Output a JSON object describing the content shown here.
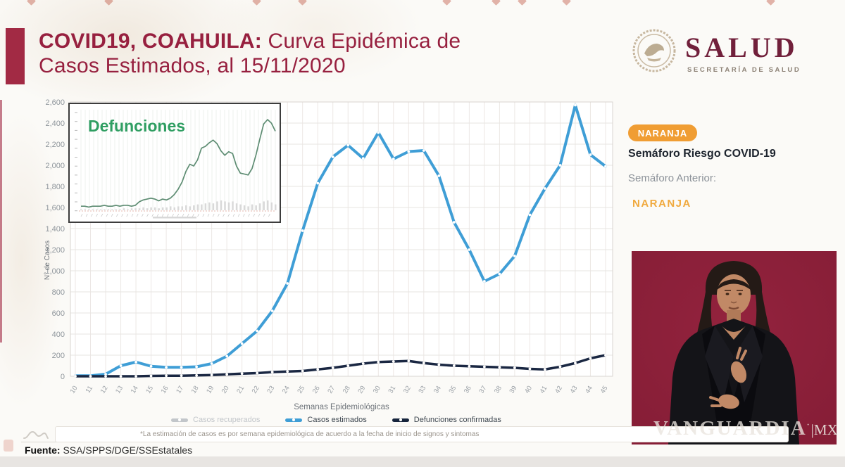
{
  "header": {
    "title_strong": "COVID19, COAHUILA:",
    "title_rest": " Curva Epidémica de",
    "title_line2": "Casos Estimados, al 15/11/2020",
    "logo": {
      "name": "SALUD",
      "subtitle": "SECRETARÍA DE SALUD"
    }
  },
  "status_panel": {
    "badge_label": "NARANJA",
    "badge_color": "#F09D33",
    "risk_label": "Semáforo Riesgo COVID-19",
    "previous_label": "Semáforo Anterior:",
    "previous_value": "NARANJA",
    "previous_value_color": "#F0A93E"
  },
  "chart_data": {
    "type": "line",
    "xlabel": "Semanas Epidemiológicas",
    "ylabel": "N° de Casos",
    "ylim": [
      0,
      2600
    ],
    "ytick_step": 200,
    "grid": true,
    "legend_position": "bottom",
    "categories": [
      "10",
      "11",
      "12",
      "13",
      "14",
      "15",
      "16",
      "17",
      "18",
      "19",
      "20",
      "21",
      "22",
      "23",
      "24",
      "25",
      "26",
      "27",
      "28",
      "29",
      "30",
      "31",
      "32",
      "33",
      "34",
      "35",
      "36",
      "37",
      "38",
      "39",
      "40",
      "41",
      "42",
      "43",
      "44",
      "45"
    ],
    "series": [
      {
        "name": "Casos recuperados",
        "color": "#C2C6CA",
        "visible": false,
        "width": 3.5,
        "values": []
      },
      {
        "name": "Casos estimados",
        "color": "#3F9ED6",
        "visible": true,
        "width": 4,
        "values": [
          5,
          5,
          20,
          100,
          135,
          95,
          85,
          85,
          90,
          120,
          190,
          310,
          430,
          620,
          880,
          1380,
          1830,
          2080,
          2190,
          2065,
          2310,
          2060,
          2130,
          2140,
          1900,
          1460,
          1200,
          900,
          970,
          1140,
          1530,
          1780,
          2000,
          2570,
          2100,
          1990
        ]
      },
      {
        "name": "Defunciones confirmadas",
        "color": "#1A2742",
        "visible": true,
        "width": 3.5,
        "values": [
          0,
          0,
          0,
          0,
          0,
          3,
          5,
          5,
          8,
          12,
          18,
          25,
          30,
          40,
          45,
          50,
          65,
          80,
          100,
          120,
          135,
          140,
          145,
          125,
          110,
          100,
          95,
          90,
          85,
          80,
          70,
          65,
          90,
          125,
          170,
          200
        ]
      }
    ],
    "inset": {
      "type": "line",
      "title": "Defunciones",
      "title_color": "#2F9E62",
      "line_color": "#5D8C72",
      "bar_color": "#D9D9D9",
      "values": [
        3,
        3,
        2,
        3,
        3,
        3,
        4,
        3,
        3,
        4,
        3,
        4,
        4,
        3,
        4,
        8,
        10,
        11,
        12,
        11,
        9,
        11,
        10,
        12,
        16,
        22,
        30,
        42,
        50,
        48,
        55,
        68,
        70,
        74,
        77,
        73,
        65,
        60,
        64,
        62,
        48,
        40,
        39,
        38,
        45,
        60,
        78,
        95,
        100,
        96,
        87
      ],
      "bar_values": [
        1,
        1,
        1,
        1,
        1,
        1,
        1,
        1,
        1,
        1,
        1,
        2,
        1,
        2,
        2,
        2,
        3,
        2,
        3,
        3,
        2,
        3,
        3,
        4,
        3,
        4,
        4,
        5,
        4,
        5,
        6,
        6,
        7,
        8,
        7,
        9,
        10,
        9,
        8,
        9,
        7,
        6,
        5,
        4,
        6,
        5,
        7,
        9,
        10,
        8,
        6
      ]
    }
  },
  "legend": [
    {
      "label": "Casos recuperados",
      "marker_color": "#C2C6CA",
      "text_color": "#C2C6CA",
      "enabled": false
    },
    {
      "label": "Casos estimados",
      "marker_color": "#3F9ED6",
      "text_color": "#3E4750",
      "enabled": true
    },
    {
      "label": "Defunciones confirmadas",
      "marker_color": "#16243C",
      "text_color": "#3E4750",
      "enabled": true
    }
  ],
  "footnote": "*La estimación de casos es por semana epidemiológica de acuerdo a la fecha de inicio de signos y sintomas",
  "footer": {
    "source_label": "Fuente:",
    "source_value": "SSA/SPPS/DGE/SSEstatales"
  },
  "watermark": {
    "main": "VANGUARDIA",
    "dot": "·",
    "suffix": "|MX"
  }
}
